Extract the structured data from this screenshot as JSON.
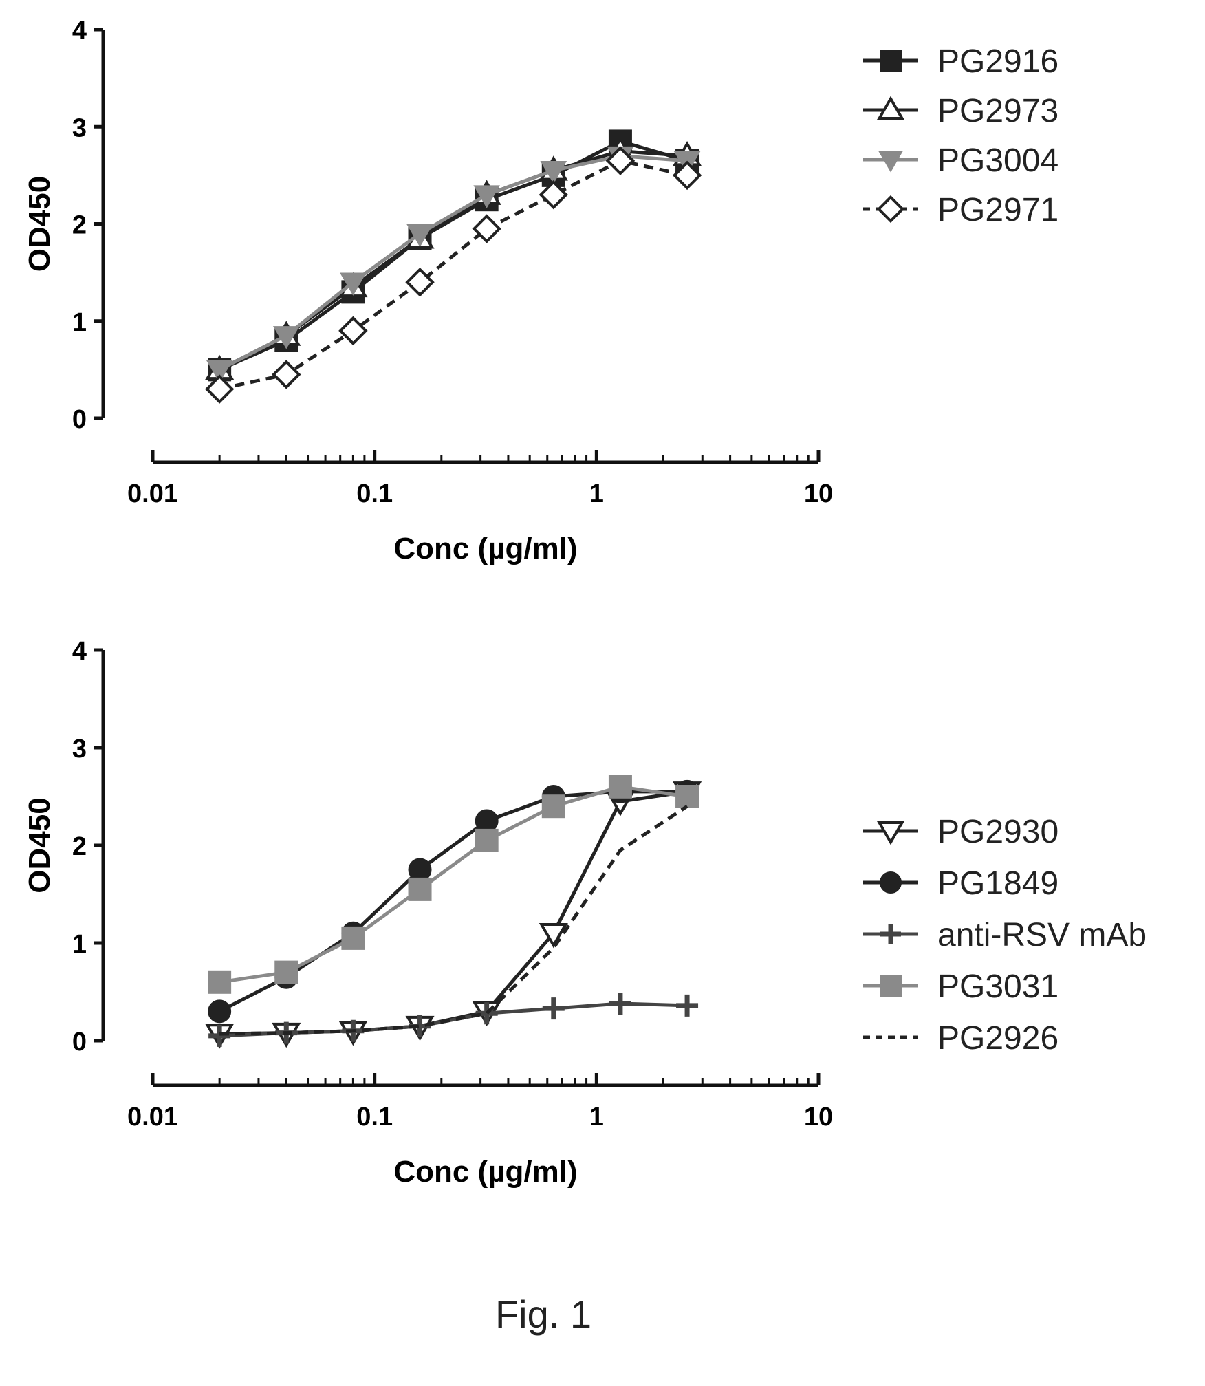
{
  "figure_caption": "Fig. 1",
  "chart_data": [
    {
      "type": "line",
      "xscale": "log",
      "xlim": [
        0.01,
        10
      ],
      "ylim": [
        0,
        4
      ],
      "xlabel": "Conc (µg/ml)",
      "ylabel": "OD450",
      "xticks": [
        "0.01",
        "0.1",
        "1",
        "10"
      ],
      "yticks": [
        "0",
        "1",
        "2",
        "3",
        "4"
      ],
      "legend_position": "right",
      "series": [
        {
          "name": "PG2916",
          "marker": "square-filled",
          "line": "solid",
          "color": "#222222",
          "x": [
            0.02,
            0.04,
            0.08,
            0.16,
            0.32,
            0.64,
            1.28,
            2.56
          ],
          "values": [
            0.5,
            0.8,
            1.3,
            1.85,
            2.25,
            2.5,
            2.85,
            2.65
          ]
        },
        {
          "name": "PG2973",
          "marker": "triangle-up-open",
          "line": "solid",
          "color": "#222222",
          "x": [
            0.02,
            0.04,
            0.08,
            0.16,
            0.32,
            0.64,
            1.28,
            2.56
          ],
          "values": [
            0.5,
            0.85,
            1.35,
            1.85,
            2.3,
            2.55,
            2.75,
            2.7
          ]
        },
        {
          "name": "PG3004",
          "marker": "triangle-down-filled",
          "line": "solid",
          "color": "#8a8a8a",
          "x": [
            0.02,
            0.04,
            0.08,
            0.16,
            0.32,
            0.64,
            1.28,
            2.56
          ],
          "values": [
            0.5,
            0.85,
            1.4,
            1.9,
            2.3,
            2.55,
            2.7,
            2.65
          ]
        },
        {
          "name": "PG2971",
          "marker": "diamond-open",
          "line": "dashed",
          "color": "#222222",
          "x": [
            0.02,
            0.04,
            0.08,
            0.16,
            0.32,
            0.64,
            1.28,
            2.56
          ],
          "values": [
            0.3,
            0.45,
            0.9,
            1.4,
            1.95,
            2.3,
            2.65,
            2.5
          ]
        }
      ]
    },
    {
      "type": "line",
      "xscale": "log",
      "xlim": [
        0.01,
        10
      ],
      "ylim": [
        0,
        4
      ],
      "xlabel": "Conc (µg/ml)",
      "ylabel": "OD450",
      "xticks": [
        "0.01",
        "0.1",
        "1",
        "10"
      ],
      "yticks": [
        "0",
        "1",
        "2",
        "3",
        "4"
      ],
      "legend_position": "right",
      "series": [
        {
          "name": "PG2930",
          "marker": "triangle-down-open",
          "line": "solid",
          "color": "#222222",
          "x": [
            0.02,
            0.04,
            0.08,
            0.16,
            0.32,
            0.64,
            1.28,
            2.56
          ],
          "values": [
            0.07,
            0.08,
            0.1,
            0.15,
            0.3,
            1.1,
            2.45,
            2.55
          ]
        },
        {
          "name": "PG1849",
          "marker": "circle-filled",
          "line": "solid",
          "color": "#222222",
          "x": [
            0.02,
            0.04,
            0.08,
            0.16,
            0.32,
            0.64,
            1.28,
            2.56
          ],
          "values": [
            0.3,
            0.65,
            1.1,
            1.75,
            2.25,
            2.5,
            2.55,
            2.55
          ]
        },
        {
          "name": "anti-RSV mAb",
          "marker": "plus",
          "line": "solid",
          "color": "#444444",
          "x": [
            0.02,
            0.04,
            0.08,
            0.16,
            0.32,
            0.64,
            1.28,
            2.56
          ],
          "values": [
            0.05,
            0.08,
            0.1,
            0.15,
            0.28,
            0.33,
            0.38,
            0.36
          ]
        },
        {
          "name": "PG3031",
          "marker": "square-filled",
          "line": "solid",
          "color": "#8a8a8a",
          "x": [
            0.02,
            0.04,
            0.08,
            0.16,
            0.32,
            0.64,
            1.28,
            2.56
          ],
          "values": [
            0.6,
            0.7,
            1.05,
            1.55,
            2.05,
            2.4,
            2.6,
            2.5
          ]
        },
        {
          "name": "PG2926",
          "marker": "none",
          "line": "dashed",
          "color": "#222222",
          "x": [
            0.02,
            0.04,
            0.08,
            0.16,
            0.32,
            0.64,
            1.28,
            2.56
          ],
          "values": [
            0.07,
            0.08,
            0.1,
            0.15,
            0.28,
            0.95,
            1.95,
            2.4
          ]
        }
      ]
    }
  ]
}
